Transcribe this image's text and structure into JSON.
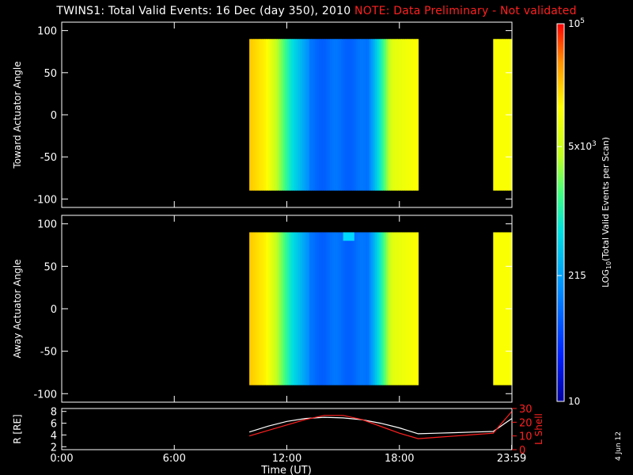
{
  "title": {
    "main": "TWINS1: Total Valid Events: 16 Dec (day 350), 2010",
    "note": "NOTE: Data Preliminary - Not validated"
  },
  "colors": {
    "background": "#000000",
    "axes": "#ffffff",
    "note": "#ff2020",
    "lshell": "#ff2020",
    "radius": "#ffffff"
  },
  "stamp": "4 Jun 12",
  "chart_data": [
    {
      "type": "heatmap",
      "ylabel": "Toward Actuator Angle",
      "xlim": [
        0,
        24
      ],
      "ylim": [
        -110,
        110
      ],
      "yticks": [
        100,
        50,
        0,
        -50,
        -100
      ],
      "data_y_range": [
        -90,
        90
      ],
      "data_time_ranges": [
        [
          10.0,
          19.0
        ],
        [
          23.0,
          24.0
        ]
      ],
      "colormap": "rainbow (blue-cyan-green-yellow-red)",
      "anomaly": "",
      "ytick_labels": [
        "100",
        "50",
        "0",
        "-50",
        "-100"
      ]
    },
    {
      "type": "heatmap",
      "ylabel": "Away Actuator Angle",
      "xlim": [
        0,
        24
      ],
      "ylim": [
        -110,
        110
      ],
      "yticks": [
        100,
        50,
        0,
        -50,
        -100
      ],
      "data_y_range": [
        -90,
        90
      ],
      "data_time_ranges": [
        [
          10.0,
          19.0
        ],
        [
          23.0,
          24.0
        ]
      ],
      "colormap": "rainbow (blue-cyan-green-yellow-red)",
      "anomaly": "patch of elevated counts near 15:00 at 80 to 90 degrees",
      "ytick_labels": [
        "100",
        "50",
        "0",
        "-50",
        "-100"
      ]
    },
    {
      "type": "line",
      "xlabel": "Time (UT)",
      "ylabel_left": "R [RE]",
      "ylabel_right": "L Shell",
      "xlim": [
        0,
        24
      ],
      "xtick_labels": [
        "0:00",
        "6:00",
        "12:00",
        "18:00",
        "23:59"
      ],
      "ylim_left": [
        1.5,
        8.5
      ],
      "yticks_left": [
        2,
        4,
        6,
        8
      ],
      "ylim_right": [
        0,
        30
      ],
      "yticks_right": [
        0,
        10,
        20,
        30
      ],
      "series": [
        {
          "name": "R [RE]",
          "axis": "left",
          "color": "#ffffff",
          "x": [
            10.0,
            11.0,
            12.0,
            13.0,
            14.0,
            15.0,
            16.0,
            17.0,
            18.0,
            19.0,
            20.0,
            21.0,
            22.0,
            23.0,
            24.0
          ],
          "y": [
            4.5,
            5.5,
            6.3,
            6.8,
            7.0,
            6.9,
            6.6,
            6.0,
            5.2,
            4.2,
            4.3,
            4.4,
            4.5,
            4.6,
            6.8
          ]
        },
        {
          "name": "L Shell",
          "axis": "right",
          "color": "#ff2020",
          "x": [
            10.0,
            11.0,
            12.0,
            13.0,
            14.0,
            15.0,
            16.0,
            17.0,
            18.0,
            19.0,
            20.0,
            21.0,
            22.0,
            23.0,
            24.0
          ],
          "y": [
            10.0,
            14.0,
            18.0,
            22.0,
            25.0,
            25.0,
            22.0,
            17.0,
            12.0,
            8.0,
            9.0,
            10.0,
            11.0,
            12.0,
            28.0
          ]
        }
      ]
    }
  ],
  "colorbar": {
    "label_parts": [
      "LOG",
      "10",
      "(Total Valid Events per Scan)"
    ],
    "range": [
      10,
      100000
    ],
    "scale": "log",
    "ticks": [
      {
        "value": 100000,
        "label": "10",
        "sup": "5"
      },
      {
        "value": 5000,
        "label": "5x10",
        "sup": "3"
      },
      {
        "value": 215,
        "label": "215",
        "sup": ""
      },
      {
        "value": 10,
        "label": "10",
        "sup": ""
      }
    ]
  }
}
